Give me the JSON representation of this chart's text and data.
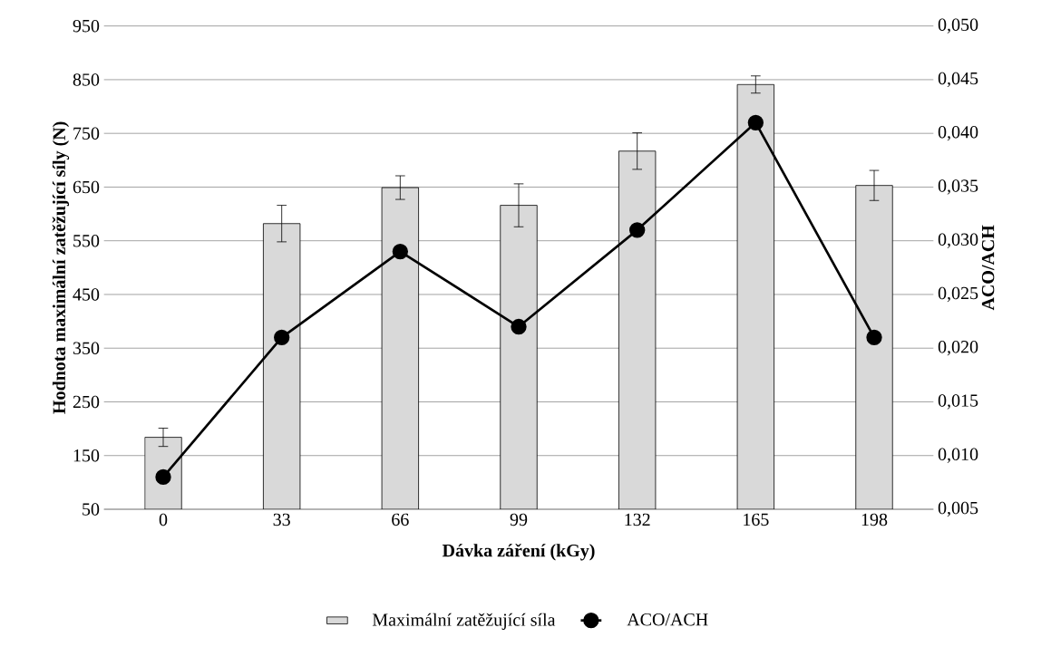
{
  "chart_data": {
    "type": "bar",
    "xlabel": "Dávka záření (kGy)",
    "ylabel": "Hodnota maximální zatěžující síly (N)",
    "y2label": "ACO/ACH",
    "categories": [
      "0",
      "33",
      "66",
      "99",
      "132",
      "165",
      "198"
    ],
    "series": [
      {
        "name": "Maximální zatěžující síla",
        "color": "#d9d9d9",
        "values": [
          184,
          582,
          649,
          616,
          717,
          841,
          653
        ],
        "errors": [
          17,
          34,
          22,
          40,
          34,
          16,
          28
        ]
      },
      {
        "name": "ACO/ACH",
        "type": "line",
        "axis": "y2",
        "color": "#000000",
        "marker": "circle",
        "values": [
          0.008,
          0.021,
          0.029,
          0.022,
          0.031,
          0.041,
          0.021
        ]
      }
    ],
    "ylim": [
      50,
      950
    ],
    "yticks": [
      50,
      150,
      250,
      350,
      450,
      550,
      650,
      750,
      850,
      950
    ],
    "y2lim": [
      0.005,
      0.05
    ],
    "y2ticks": [
      {
        "value": 0.005,
        "label": "0,005"
      },
      {
        "value": 0.01,
        "label": "0,010"
      },
      {
        "value": 0.015,
        "label": "0,015"
      },
      {
        "value": 0.02,
        "label": "0,020"
      },
      {
        "value": 0.025,
        "label": "0,025"
      },
      {
        "value": 0.03,
        "label": "0,030"
      },
      {
        "value": 0.035,
        "label": "0,035"
      },
      {
        "value": 0.04,
        "label": "0,040"
      },
      {
        "value": 0.045,
        "label": "0,045"
      },
      {
        "value": 0.05,
        "label": "0,050"
      }
    ],
    "grid": "y",
    "legend": "bottom"
  }
}
